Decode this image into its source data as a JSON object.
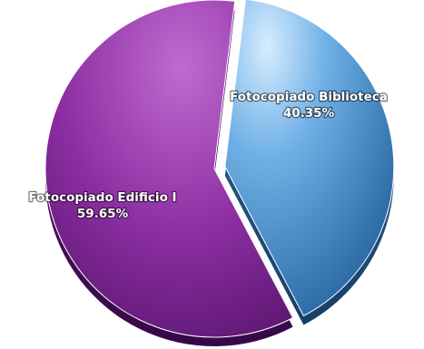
{
  "chart_data": {
    "type": "pie",
    "title": "",
    "slices": [
      {
        "label": "Fotocopiado Biblioteca",
        "value": 40.35,
        "value_label": "40.35%",
        "color": "#4a90c8",
        "exploded": true
      },
      {
        "label": "Fotocopiado Edificio I",
        "value": 59.65,
        "value_label": "59.65%",
        "color": "#8a2e9e",
        "exploded": false
      }
    ],
    "legend": "none",
    "style": "3d"
  }
}
